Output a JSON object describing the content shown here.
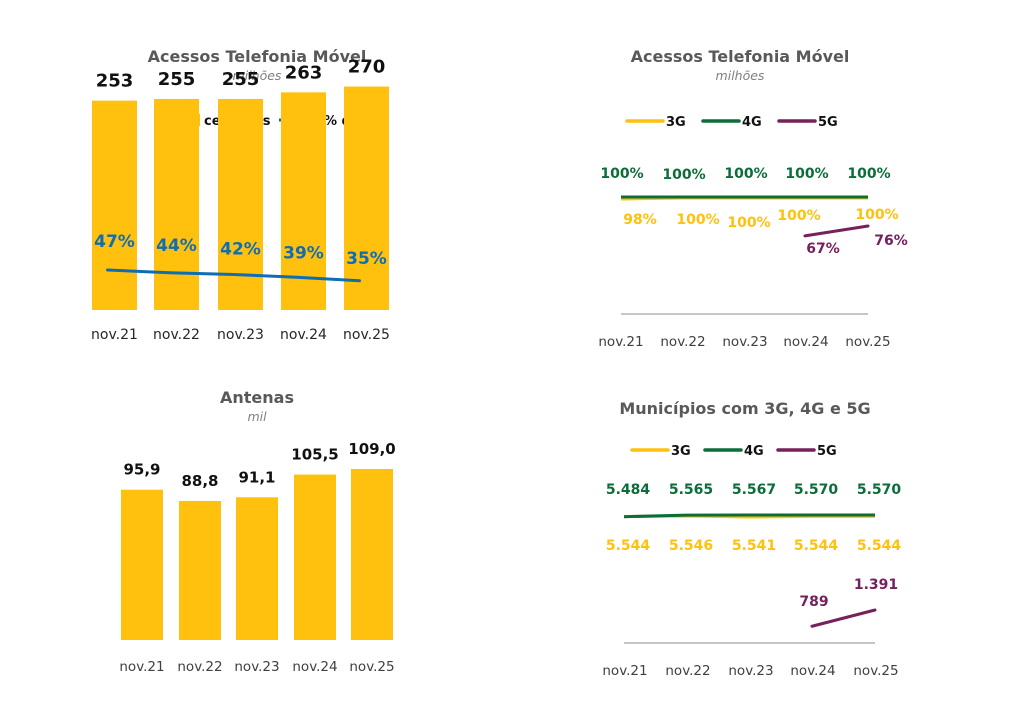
{
  "colors": {
    "yellow": "#FFC10E",
    "blue": "#0F6DB3",
    "green": "#0B6E3A",
    "purple": "#76205C",
    "axis": "#8c8c8c"
  },
  "chart_data": [
    {
      "id": "acessos-celulares",
      "type": "bar",
      "title": "Acessos Telefonia Móvel",
      "subtitle": "milhões",
      "legend": [
        {
          "name": "celulares",
          "kind": "bar",
          "color": "#FFC10E"
        },
        {
          "name": "% de pré",
          "kind": "line",
          "color": "#0F6DB3"
        }
      ],
      "legend_position": "top-right",
      "categories": [
        "nov.21",
        "nov.22",
        "nov.23",
        "nov.24",
        "nov.25"
      ],
      "series": [
        {
          "name": "celulares",
          "type": "bar",
          "values": [
            253,
            255,
            255,
            263,
            270
          ],
          "labels": [
            "253",
            "255",
            "255",
            "263",
            "270"
          ]
        },
        {
          "name": "% de pré",
          "type": "line",
          "values": [
            47,
            44,
            42,
            39,
            35
          ],
          "labels": [
            "47%",
            "44%",
            "42%",
            "39%",
            "35%"
          ]
        }
      ],
      "ylim": [
        0,
        290
      ],
      "line_ylim": [
        0,
        100
      ],
      "grid": false
    },
    {
      "id": "acessos-tecnologia",
      "type": "line",
      "title": "Acessos Telefonia Móvel",
      "subtitle": "milhões",
      "legend": [
        {
          "name": "3G",
          "color": "#FFC10E"
        },
        {
          "name": "4G",
          "color": "#0B6E3A"
        },
        {
          "name": "5G",
          "color": "#76205C"
        }
      ],
      "legend_position": "top",
      "categories": [
        "nov.21",
        "nov.22",
        "nov.23",
        "nov.24",
        "nov.25"
      ],
      "series": [
        {
          "name": "3G",
          "values": [
            98,
            100,
            100,
            100,
            100
          ],
          "labels": [
            "98%",
            "100%",
            "100%",
            "100%",
            "100%"
          ]
        },
        {
          "name": "4G",
          "values": [
            100,
            100,
            100,
            100,
            100
          ],
          "labels": [
            "100%",
            "100%",
            "100%",
            "100%",
            "100%"
          ]
        },
        {
          "name": "5G",
          "values": [
            null,
            null,
            null,
            67,
            76
          ],
          "labels": [
            "",
            "",
            "",
            "67%",
            "76%"
          ]
        }
      ],
      "ylim": [
        0,
        100
      ],
      "grid": false
    },
    {
      "id": "antenas",
      "type": "bar",
      "title": "Antenas",
      "subtitle": "mil",
      "categories": [
        "nov.21",
        "nov.22",
        "nov.23",
        "nov.24",
        "nov.25"
      ],
      "series": [
        {
          "name": "Antenas",
          "values": [
            95.9,
            88.8,
            91.1,
            105.5,
            109.0
          ],
          "labels": [
            "95,9",
            "88,8",
            "91,1",
            "105,5",
            "109,0"
          ]
        }
      ],
      "ylim": [
        0,
        125
      ],
      "grid": false
    },
    {
      "id": "municipios",
      "type": "line",
      "title": "Municípios com 3G, 4G e 5G",
      "subtitle": "",
      "legend": [
        {
          "name": "3G",
          "color": "#FFC10E"
        },
        {
          "name": "4G",
          "color": "#0B6E3A"
        },
        {
          "name": "5G",
          "color": "#76205C"
        }
      ],
      "legend_position": "top",
      "categories": [
        "nov.21",
        "nov.22",
        "nov.23",
        "nov.24",
        "nov.25"
      ],
      "series": [
        {
          "name": "3G",
          "values": [
            5544,
            5546,
            5541,
            5544,
            5544
          ],
          "labels": [
            "5.544",
            "5.546",
            "5.541",
            "5.544",
            "5.544"
          ]
        },
        {
          "name": "4G",
          "values": [
            5484,
            5565,
            5567,
            5570,
            5570
          ],
          "labels": [
            "5.484",
            "5.565",
            "5.567",
            "5.570",
            "5.570"
          ]
        },
        {
          "name": "5G",
          "values": [
            null,
            null,
            null,
            789,
            1391
          ],
          "labels": [
            "",
            "",
            "",
            "789",
            "1.391"
          ]
        }
      ],
      "ylim": [
        0,
        5570
      ],
      "grid": false
    }
  ]
}
